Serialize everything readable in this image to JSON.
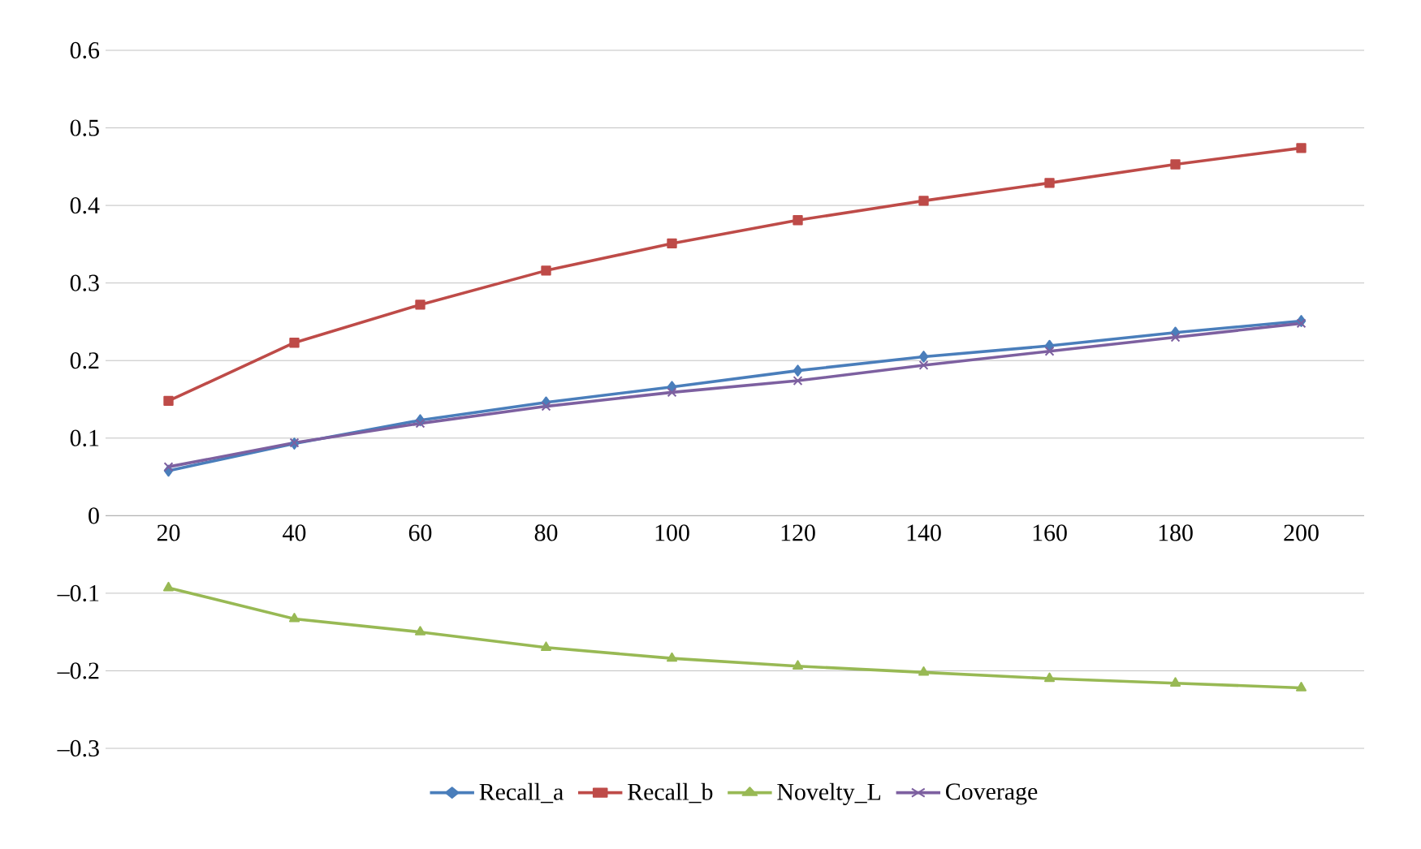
{
  "chart_data": {
    "type": "line",
    "categories": [
      "20",
      "40",
      "60",
      "80",
      "100",
      "120",
      "140",
      "160",
      "180",
      "200"
    ],
    "series": [
      {
        "name": "Recall_a",
        "color": "#4a7ebb",
        "marker": "diamond",
        "values": [
          0.058,
          0.093,
          0.123,
          0.146,
          0.166,
          0.187,
          0.205,
          0.219,
          0.236,
          0.251
        ]
      },
      {
        "name": "Recall_b",
        "color": "#be4b48",
        "marker": "square",
        "values": [
          0.148,
          0.223,
          0.272,
          0.316,
          0.351,
          0.381,
          0.406,
          0.429,
          0.453,
          0.474
        ]
      },
      {
        "name": "Novelty_L",
        "color": "#98b954",
        "marker": "triangle",
        "values": [
          -0.093,
          -0.133,
          -0.15,
          -0.17,
          -0.184,
          -0.194,
          -0.202,
          -0.21,
          -0.216,
          -0.222
        ]
      },
      {
        "name": "Coverage",
        "color": "#7d60a0",
        "marker": "cross",
        "values": [
          0.063,
          0.094,
          0.119,
          0.141,
          0.159,
          0.174,
          0.194,
          0.212,
          0.23,
          0.248
        ]
      }
    ],
    "ylim": [
      -0.3,
      0.6
    ],
    "yticks": [
      {
        "value": -0.3,
        "label": "–0.3"
      },
      {
        "value": -0.2,
        "label": "–0.2"
      },
      {
        "value": -0.1,
        "label": "–0.1"
      },
      0,
      0.1,
      0.2,
      0.3,
      0.4,
      0.5,
      0.6
    ],
    "grid": "y",
    "legend": "bottom",
    "line_style": "solid"
  }
}
